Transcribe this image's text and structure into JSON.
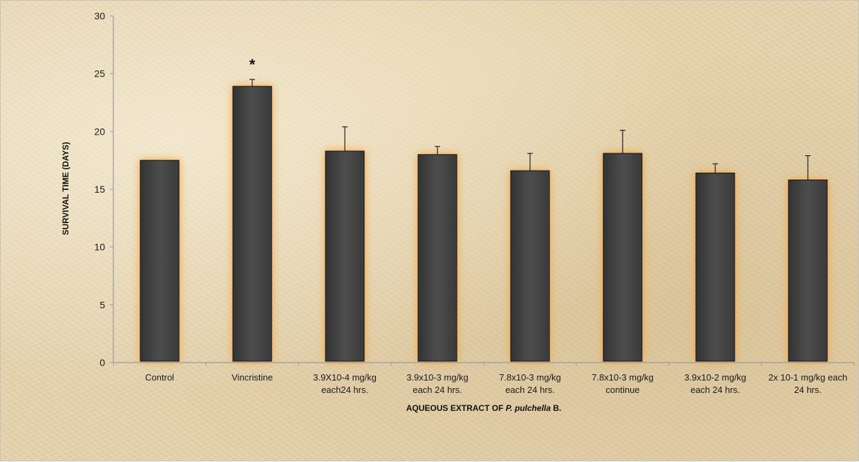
{
  "chart_data": {
    "type": "bar",
    "categories": [
      [
        "Control"
      ],
      [
        "Vincristine"
      ],
      [
        "3.9X10-4 mg/kg",
        "each24 hrs."
      ],
      [
        "3.9x10-3 mg/kg",
        "each 24 hrs."
      ],
      [
        "7.8x10-3 mg/kg",
        "each 24 hrs."
      ],
      [
        "7.8x10-3 mg/kg",
        "continue"
      ],
      [
        "3.9x10-2 mg/kg",
        "each 24 hrs."
      ],
      [
        "2x 10-1 mg/kg each",
        "24 hrs."
      ]
    ],
    "values": [
      17.5,
      23.9,
      18.3,
      18.0,
      16.6,
      18.1,
      16.4,
      15.8
    ],
    "errors": [
      0,
      0.6,
      2.1,
      0.7,
      1.5,
      2.0,
      0.8,
      2.1
    ],
    "annotations": [
      {
        "category_index": 1,
        "text": "*"
      }
    ],
    "ylabel": "SURVIVAL TIME (DAYS)",
    "xlabel": {
      "prefix": "AQUEOUS EXTRACT OF ",
      "italic": "P. pulchella",
      "suffix": " B."
    },
    "ylim": [
      0,
      30
    ],
    "yticks": [
      0,
      5,
      10,
      15,
      20,
      25,
      30
    ],
    "grid": false,
    "legend": "none",
    "colors": {
      "bar_fill": "#474747",
      "bar_glow": "#f5a13a",
      "axis": "#9a9a9a",
      "error_bar": "#1e1e1e"
    }
  }
}
